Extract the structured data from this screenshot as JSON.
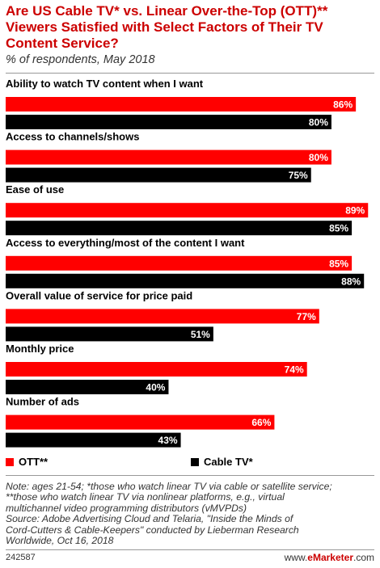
{
  "title": "Are US Cable TV* vs. Linear Over-the-Top (OTT)** Viewers Satisfied with Select Factors of Their TV Content Service?",
  "subtitle": "% of respondents, May 2018",
  "colors": {
    "ott": "#ff0000",
    "cable": "#000000",
    "title": "#cc0000"
  },
  "chart_data": {
    "type": "bar",
    "orientation": "horizontal",
    "categories": [
      "Ability to watch TV content when I want",
      "Access to channels/shows",
      "Ease of use",
      "Access to everything/most of the content I want",
      "Overall value of service for price paid",
      "Monthly price",
      "Number of ads"
    ],
    "series": [
      {
        "name": "OTT**",
        "values": [
          86,
          80,
          89,
          85,
          77,
          74,
          66
        ],
        "labels": [
          "86%",
          "80%",
          "89%",
          "85%",
          "77%",
          "74%",
          "66%"
        ]
      },
      {
        "name": "Cable TV*",
        "values": [
          80,
          75,
          85,
          88,
          51,
          40,
          43
        ],
        "labels": [
          "80%",
          "75%",
          "85%",
          "88%",
          "51%",
          "40%",
          "43%"
        ]
      }
    ],
    "unit": "%",
    "xlim": [
      0,
      100
    ],
    "grid": false,
    "legend": "bottom"
  },
  "legend": {
    "ott": "OTT**",
    "cable": "Cable TV*"
  },
  "note_lines": [
    "Note: ages 21-54; *those who watch linear TV via cable or satellite service;",
    "**those who watch linear TV via nonlinear platforms, e.g., virtual",
    "multichannel video programming distributors (vMVPDs)",
    "Source: Adobe Advertising Cloud and Telaria, \"Inside the Minds of",
    "Cord-Cutters & Cable-Keepers\" conducted by Lieberman Research",
    "Worldwide, Oct 16, 2018"
  ],
  "footer": {
    "id": "242587",
    "brand_prefix": "www.",
    "brand_name": "eMarketer",
    "brand_suffix": ".com"
  }
}
